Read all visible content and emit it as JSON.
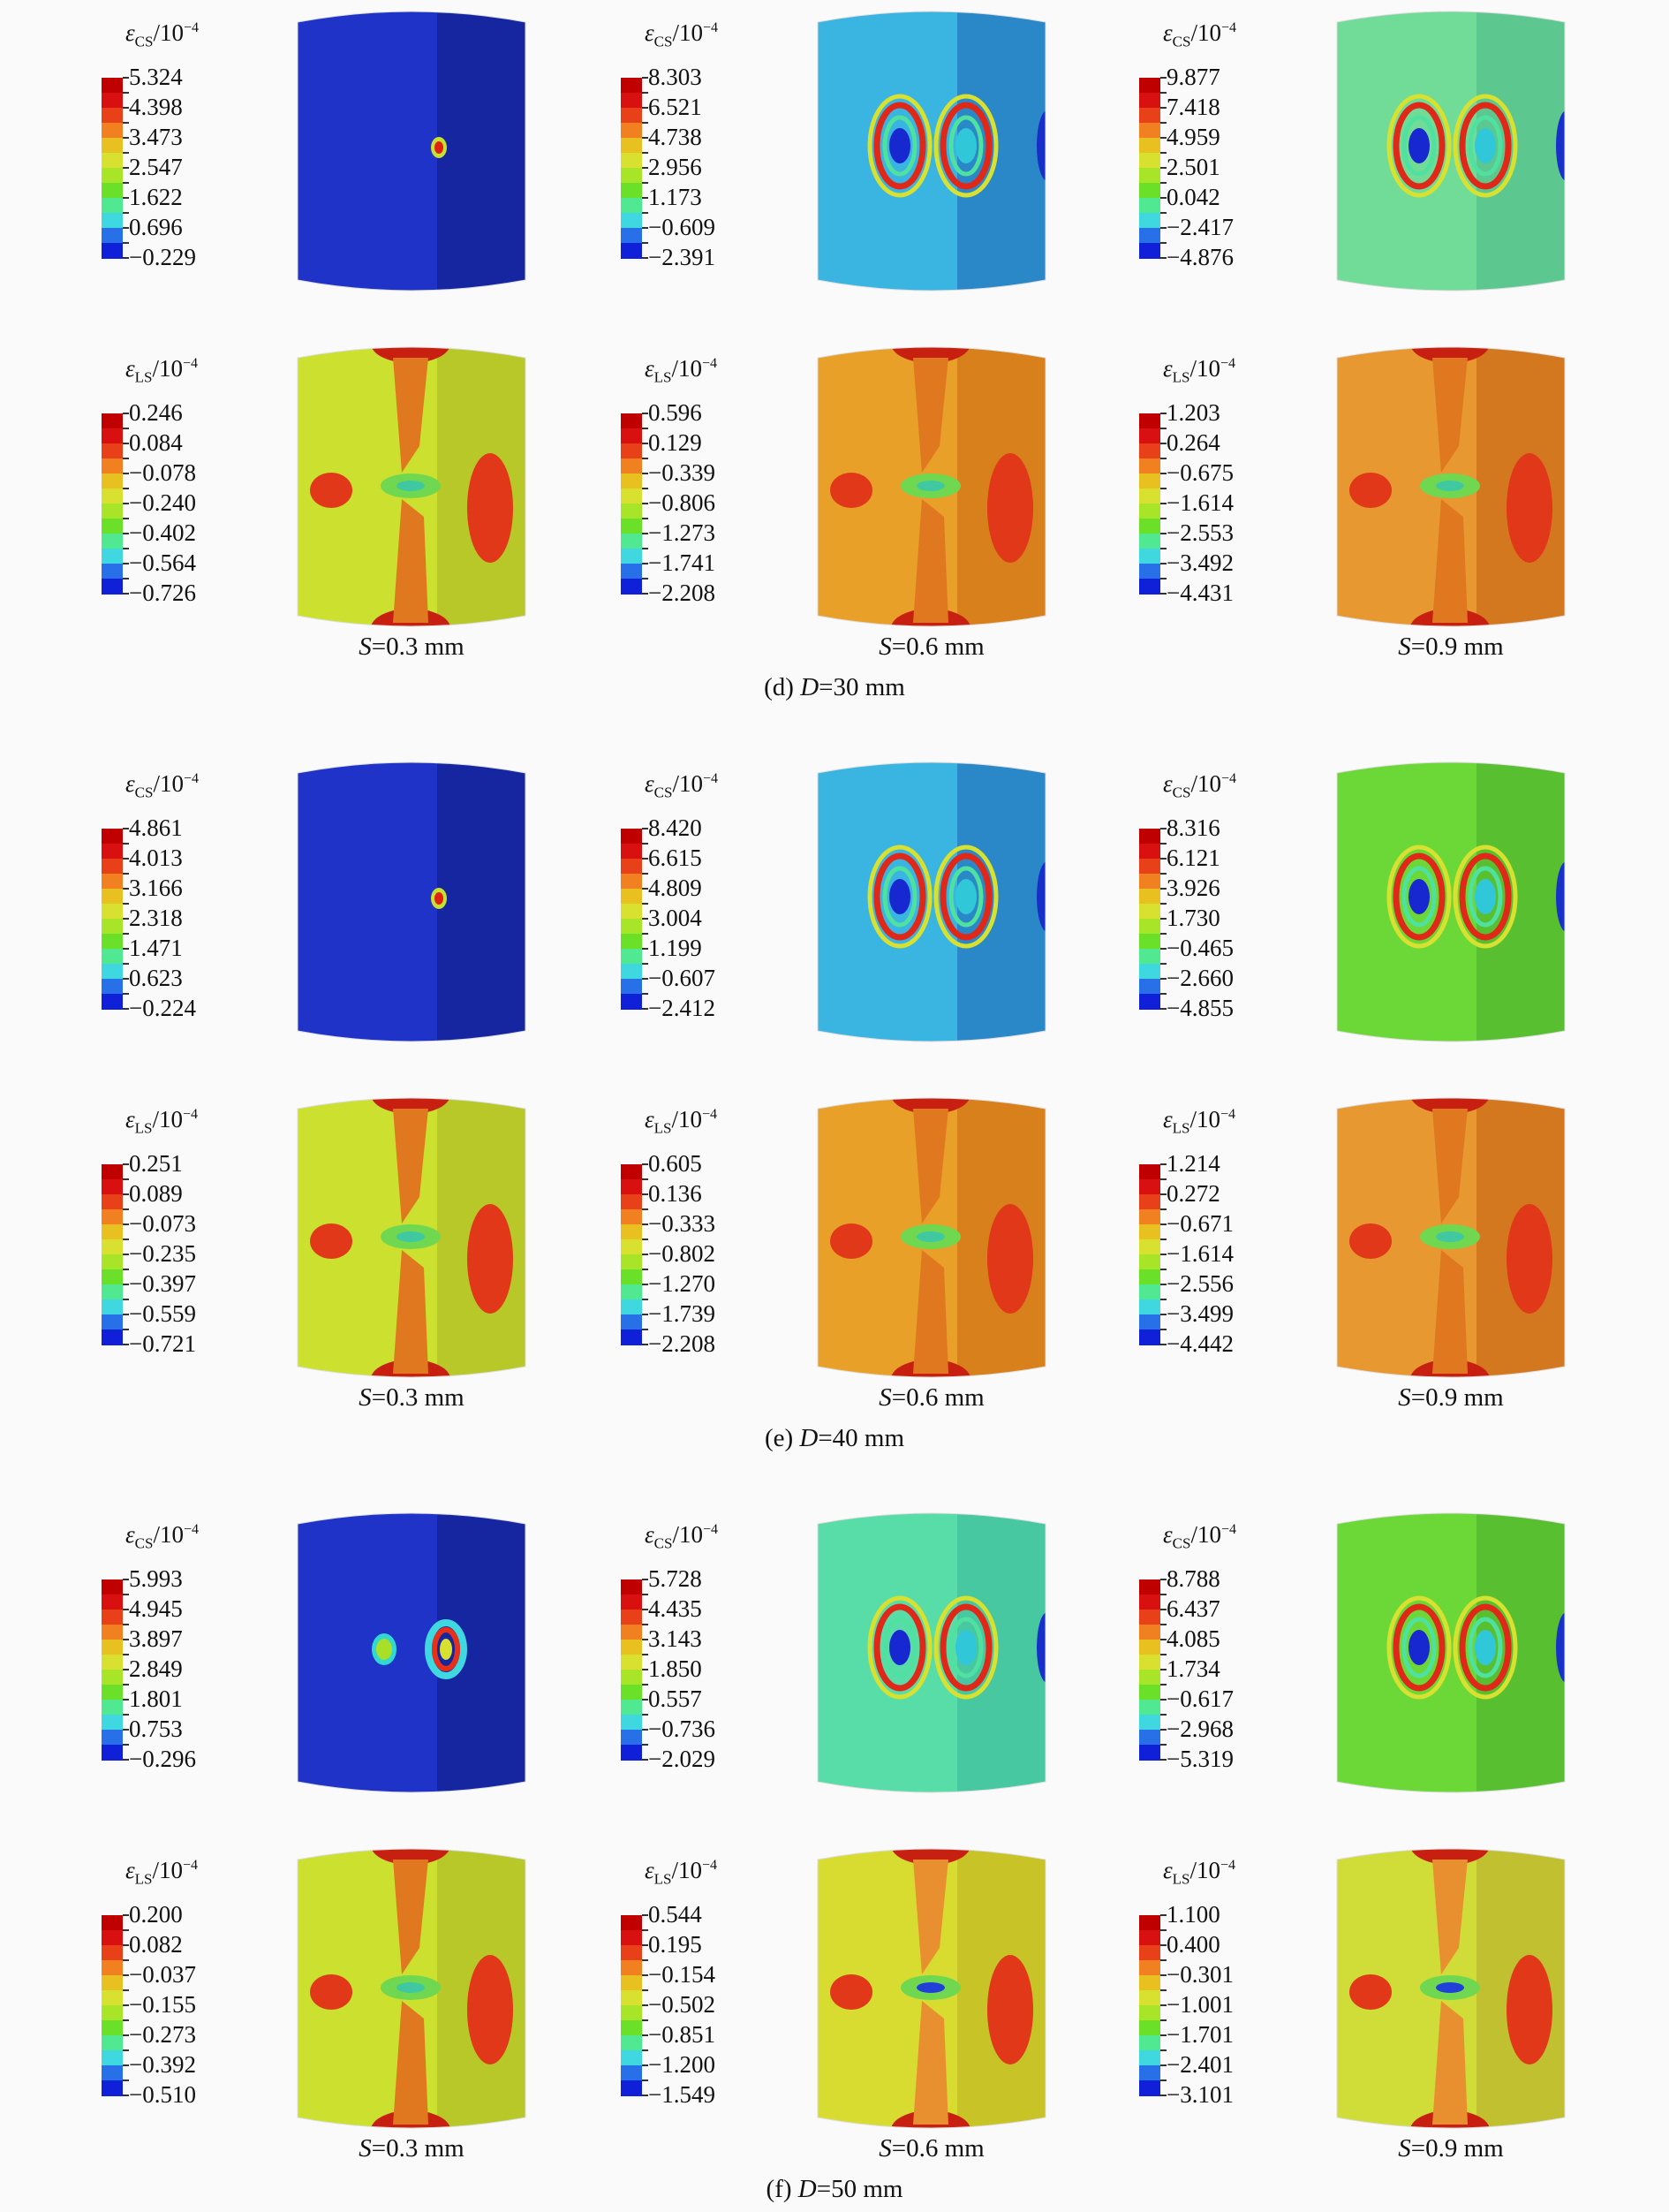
{
  "legend_colors": [
    "#1020d8",
    "#2870e8",
    "#40d8e0",
    "#50e890",
    "#6ae028",
    "#a8e428",
    "#d8e030",
    "#e8c020",
    "#f08020",
    "#e84018",
    "#d81010",
    "#c00000"
  ],
  "groups": [
    {
      "caption_label": "(d) ",
      "caption_var": "D",
      "caption_value": "=30 mm",
      "rows": [
        {
          "kind": "CS",
          "panels": [
            {
              "title_sym": "ε",
              "title_sub": "CS",
              "title_unit": "/10",
              "title_sup": "−4",
              "values": [
                "5.324",
                "4.398",
                "3.473",
                "2.547",
                "1.622",
                "0.696",
                "−0.229"
              ],
              "style": "blue",
              "S": "0.3"
            },
            {
              "title_sym": "ε",
              "title_sub": "CS",
              "title_unit": "/10",
              "title_sup": "−4",
              "values": [
                "8.303",
                "6.521",
                "4.738",
                "2.956",
                "1.173",
                "−0.609",
                "−2.391"
              ],
              "style": "cyan",
              "S": "0.6"
            },
            {
              "title_sym": "ε",
              "title_sub": "CS",
              "title_unit": "/10",
              "title_sup": "−4",
              "values": [
                "9.877",
                "7.418",
                "4.959",
                "2.501",
                "0.042",
                "−2.417",
                "−4.876"
              ],
              "style": "lightgreen",
              "S": "0.9"
            }
          ]
        },
        {
          "kind": "LS",
          "panels": [
            {
              "title_sym": "ε",
              "title_sub": "LS",
              "title_unit": "/10",
              "title_sup": "−4",
              "values": [
                "0.246",
                "0.084",
                "−0.078",
                "−0.240",
                "−0.402",
                "−0.564",
                "−0.726"
              ],
              "style": "yellow",
              "S": "0.3"
            },
            {
              "title_sym": "ε",
              "title_sub": "LS",
              "title_unit": "/10",
              "title_sup": "−4",
              "values": [
                "0.596",
                "0.129",
                "−0.339",
                "−0.806",
                "−1.273",
                "−1.741",
                "−2.208"
              ],
              "style": "orange",
              "S": "0.6"
            },
            {
              "title_sym": "ε",
              "title_sub": "LS",
              "title_unit": "/10",
              "title_sup": "−4",
              "values": [
                "1.203",
                "0.264",
                "−0.675",
                "−1.614",
                "−2.553",
                "−3.492",
                "−4.431"
              ],
              "style": "orange2",
              "S": "0.9"
            }
          ]
        }
      ],
      "s_labels": [
        {
          "var": "S",
          "text": "=0.3 mm"
        },
        {
          "var": "S",
          "text": "=0.6 mm"
        },
        {
          "var": "S",
          "text": "=0.9 mm"
        }
      ]
    },
    {
      "caption_label": "(e) ",
      "caption_var": "D",
      "caption_value": "=40 mm",
      "rows": [
        {
          "kind": "CS",
          "panels": [
            {
              "title_sym": "ε",
              "title_sub": "CS",
              "title_unit": "/10",
              "title_sup": "−4",
              "values": [
                "4.861",
                "4.013",
                "3.166",
                "2.318",
                "1.471",
                "0.623",
                "−0.224"
              ],
              "style": "blue",
              "S": "0.3"
            },
            {
              "title_sym": "ε",
              "title_sub": "CS",
              "title_unit": "/10",
              "title_sup": "−4",
              "values": [
                "8.420",
                "6.615",
                "4.809",
                "3.004",
                "1.199",
                "−0.607",
                "−2.412"
              ],
              "style": "cyan",
              "S": "0.6"
            },
            {
              "title_sym": "ε",
              "title_sub": "CS",
              "title_unit": "/10",
              "title_sup": "−4",
              "values": [
                "8.316",
                "6.121",
                "3.926",
                "1.730",
                "−0.465",
                "−2.660",
                "−4.855"
              ],
              "style": "green",
              "S": "0.9"
            }
          ]
        },
        {
          "kind": "LS",
          "panels": [
            {
              "title_sym": "ε",
              "title_sub": "LS",
              "title_unit": "/10",
              "title_sup": "−4",
              "values": [
                "0.251",
                "0.089",
                "−0.073",
                "−0.235",
                "−0.397",
                "−0.559",
                "−0.721"
              ],
              "style": "yellow",
              "S": "0.3"
            },
            {
              "title_sym": "ε",
              "title_sub": "LS",
              "title_unit": "/10",
              "title_sup": "−4",
              "values": [
                "0.605",
                "0.136",
                "−0.333",
                "−0.802",
                "−1.270",
                "−1.739",
                "−2.208"
              ],
              "style": "orange",
              "S": "0.6"
            },
            {
              "title_sym": "ε",
              "title_sub": "LS",
              "title_unit": "/10",
              "title_sup": "−4",
              "values": [
                "1.214",
                "0.272",
                "−0.671",
                "−1.614",
                "−2.556",
                "−3.499",
                "−4.442"
              ],
              "style": "orange2",
              "S": "0.9"
            }
          ]
        }
      ],
      "s_labels": [
        {
          "var": "S",
          "text": "=0.3 mm"
        },
        {
          "var": "S",
          "text": "=0.6 mm"
        },
        {
          "var": "S",
          "text": "=0.9 mm"
        }
      ]
    },
    {
      "caption_label": "(f) ",
      "caption_var": "D",
      "caption_value": "=50 mm",
      "rows": [
        {
          "kind": "CS",
          "panels": [
            {
              "title_sym": "ε",
              "title_sub": "CS",
              "title_unit": "/10",
              "title_sup": "−4",
              "values": [
                "5.993",
                "4.945",
                "3.897",
                "2.849",
                "1.801",
                "0.753",
                "−0.296"
              ],
              "style": "blue2",
              "S": "0.3"
            },
            {
              "title_sym": "ε",
              "title_sub": "CS",
              "title_unit": "/10",
              "title_sup": "−4",
              "values": [
                "5.728",
                "4.435",
                "3.143",
                "1.850",
                "0.557",
                "−0.736",
                "−2.029"
              ],
              "style": "teal",
              "S": "0.6"
            },
            {
              "title_sym": "ε",
              "title_sub": "CS",
              "title_unit": "/10",
              "title_sup": "−4",
              "values": [
                "8.788",
                "6.437",
                "4.085",
                "1.734",
                "−0.617",
                "−2.968",
                "−5.319"
              ],
              "style": "green",
              "S": "0.9"
            }
          ]
        },
        {
          "kind": "LS",
          "panels": [
            {
              "title_sym": "ε",
              "title_sub": "LS",
              "title_unit": "/10",
              "title_sup": "−4",
              "values": [
                "0.200",
                "0.082",
                "−0.037",
                "−0.155",
                "−0.273",
                "−0.392",
                "−0.510"
              ],
              "style": "yellow",
              "S": "0.3"
            },
            {
              "title_sym": "ε",
              "title_sub": "LS",
              "title_unit": "/10",
              "title_sup": "−4",
              "values": [
                "0.544",
                "0.195",
                "−0.154",
                "−0.502",
                "−0.851",
                "−1.200",
                "−1.549"
              ],
              "style": "yellow2",
              "S": "0.6"
            },
            {
              "title_sym": "ε",
              "title_sub": "LS",
              "title_unit": "/10",
              "title_sup": "−4",
              "values": [
                "1.100",
                "0.400",
                "−0.301",
                "−1.001",
                "−1.701",
                "−2.401",
                "−3.101"
              ],
              "style": "yellow3",
              "S": "0.9"
            }
          ]
        }
      ],
      "s_labels": [
        {
          "var": "S",
          "text": "=0.3 mm"
        },
        {
          "var": "S",
          "text": "=0.6 mm"
        },
        {
          "var": "S",
          "text": "=0.9 mm"
        }
      ]
    }
  ]
}
